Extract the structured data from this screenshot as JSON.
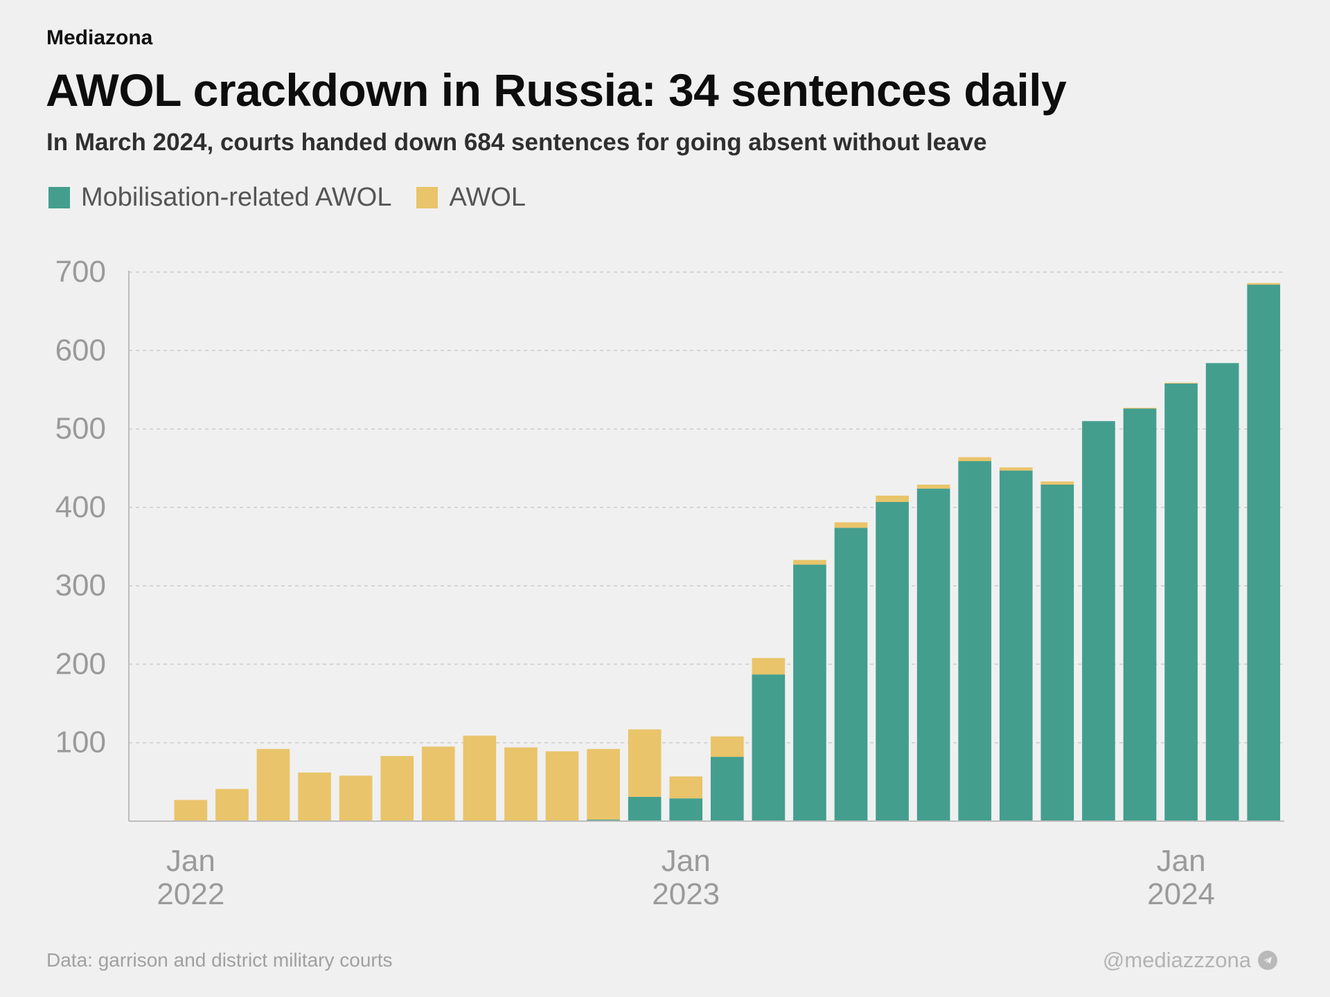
{
  "header": {
    "brand": "Mediazona",
    "title": "AWOL crackdown in Russia: 34 sentences daily",
    "subtitle": "In March 2024, courts handed down 684 sentences for going absent without leave"
  },
  "footer": {
    "source": "Data: garrison and district military courts",
    "handle": "@mediazzzona",
    "handle_icon": "telegram-icon"
  },
  "colors": {
    "mobilisation": "#439e8e",
    "awol": "#e9c46a",
    "grid": "#cccccc",
    "axis_text": "#9a9a9a"
  },
  "chart_data": {
    "type": "bar",
    "stacked": true,
    "legend_placement": "top-left",
    "grid": true,
    "ylim": [
      0,
      700
    ],
    "yticks": [
      100,
      200,
      300,
      400,
      500,
      600,
      700
    ],
    "x_ticks": [
      {
        "index": 1,
        "month": "Jan",
        "year": "2022"
      },
      {
        "index": 13,
        "month": "Jan",
        "year": "2023"
      },
      {
        "index": 25,
        "month": "Jan",
        "year": "2024"
      }
    ],
    "categories": [
      "2021-12",
      "2022-01",
      "2022-02",
      "2022-03",
      "2022-04",
      "2022-05",
      "2022-06",
      "2022-07",
      "2022-08",
      "2022-09",
      "2022-10",
      "2022-11",
      "2022-12",
      "2023-01",
      "2023-02",
      "2023-03",
      "2023-04",
      "2023-05",
      "2023-06",
      "2023-07",
      "2023-08",
      "2023-09",
      "2023-10",
      "2023-11",
      "2023-12",
      "2024-01",
      "2024-02",
      "2024-03"
    ],
    "series": [
      {
        "name": "Mobilisation-related AWOL",
        "color": "#439e8e",
        "values": [
          0,
          0,
          0,
          0,
          0,
          0,
          0,
          0,
          0,
          0,
          0,
          2,
          31,
          29,
          82,
          187,
          327,
          374,
          407,
          424,
          459,
          447,
          429,
          510,
          526,
          558,
          584,
          684
        ]
      },
      {
        "name": "AWOL",
        "color": "#e9c46a",
        "values": [
          0,
          27,
          41,
          92,
          62,
          58,
          83,
          95,
          109,
          94,
          89,
          90,
          86,
          28,
          26,
          21,
          6,
          7,
          8,
          5,
          5,
          4,
          4,
          0,
          1,
          1,
          0,
          2
        ]
      }
    ]
  }
}
